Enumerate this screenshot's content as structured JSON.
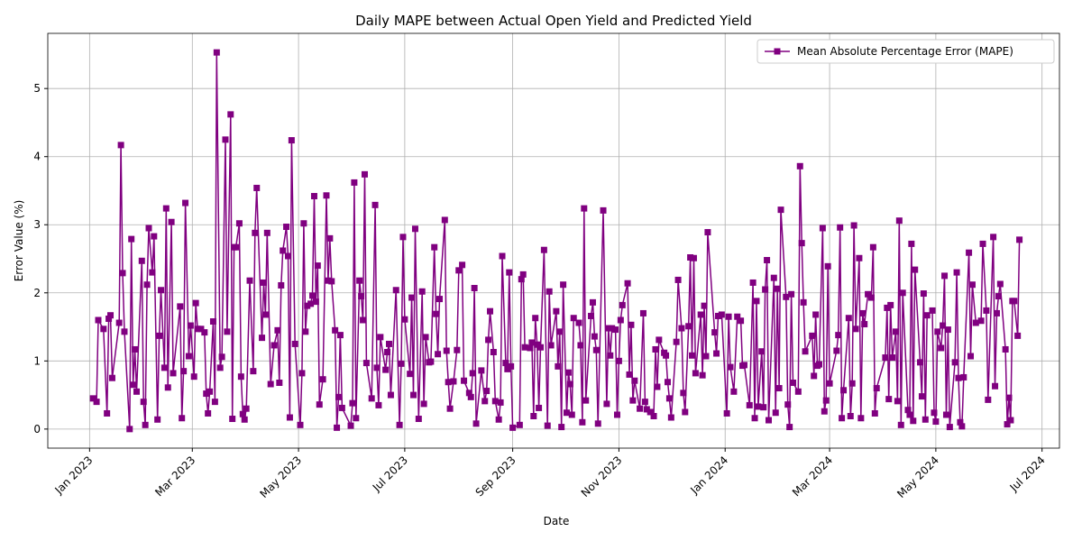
{
  "chart_data": {
    "type": "line",
    "title": "Daily MAPE between Actual Open Yield and Predicted Yield",
    "xlabel": "Date",
    "ylabel": "Error Value (%)",
    "x": [
      2,
      4,
      5,
      8,
      10,
      11,
      12,
      13,
      17,
      18,
      19,
      20,
      23,
      24,
      25,
      26,
      27,
      30,
      31,
      32,
      33,
      34,
      36,
      37,
      39,
      40,
      41,
      43,
      44,
      45,
      47,
      48,
      52,
      53,
      54,
      55,
      57,
      58,
      60,
      61,
      62,
      64,
      66,
      67,
      68,
      69,
      71,
      72,
      73,
      75,
      76,
      78,
      79,
      81,
      82,
      83,
      84,
      86,
      87,
      88,
      89,
      90,
      92,
      94,
      95,
      96,
      99,
      100,
      101,
      102,
      104,
      106,
      108,
      109,
      110,
      111,
      113,
      114,
      115,
      116,
      118,
      121,
      122,
      123,
      124,
      125,
      127,
      128,
      129,
      130,
      131,
      132,
      134,
      136,
      137,
      138,
      139,
      141,
      142,
      143,
      144,
      145,
      150,
      151,
      152,
      153,
      155,
      156,
      157,
      158,
      159,
      162,
      164,
      165,
      166,
      167,
      170,
      171,
      172,
      173,
      176,
      178,
      179,
      180,
      181,
      184,
      185,
      186,
      187,
      189,
      191,
      192,
      193,
      195,
      196,
      198,
      199,
      200,
      201,
      204,
      205,
      206,
      207,
      209,
      211,
      212,
      214,
      215,
      218,
      219,
      220,
      221,
      222,
      225,
      227,
      228,
      229,
      230,
      232,
      233,
      235,
      236,
      237,
      239,
      240,
      241,
      242,
      243,
      247,
      248,
      249,
      250,
      253,
      254,
      255,
      256,
      257,
      258,
      259,
      261,
      263,
      264,
      265,
      268,
      269,
      270,
      271,
      272,
      274,
      275,
      276,
      277,
      278,
      281,
      282,
      283,
      284,
      285,
      288,
      289,
      290,
      291,
      292,
      295,
      297,
      298,
      299,
      300,
      302,
      303,
      304,
      305,
      306,
      309,
      310,
      311,
      312,
      313,
      316,
      318,
      319,
      320,
      322,
      324,
      325,
      326,
      327,
      330,
      331,
      332,
      333,
      334,
      337,
      338,
      340,
      341,
      342,
      344,
      345,
      346,
      347,
      348,
      351,
      352,
      353,
      354,
      355,
      359,
      360,
      361,
      363,
      366,
      367,
      368,
      370,
      372,
      374,
      375,
      376,
      379,
      381,
      382,
      383,
      384,
      386,
      387,
      388,
      389,
      390,
      393,
      394,
      395,
      396,
      397,
      400,
      401,
      402,
      403,
      404,
      407,
      408,
      409,
      410,
      411,
      415,
      416,
      417,
      418,
      419,
      421,
      422,
      423,
      424,
      425,
      429,
      430,
      431,
      432,
      433,
      436,
      437,
      438,
      439,
      440,
      442,
      443,
      444,
      445,
      447,
      449,
      450,
      451,
      452,
      457,
      458,
      459,
      460,
      461,
      463,
      464,
      465,
      466,
      467,
      470,
      471,
      472,
      473,
      474,
      477,
      478,
      479,
      480,
      481,
      484,
      485,
      486,
      487,
      489,
      490,
      491,
      492,
      493,
      494,
      497,
      498,
      499,
      500,
      501,
      502,
      505,
      506,
      507,
      509,
      512,
      513,
      515,
      516,
      519,
      520,
      521,
      522,
      523,
      526,
      527,
      528,
      529,
      530,
      531,
      533,
      534
    ],
    "series": [
      {
        "name": "Mean Absolute Percentage Error (MAPE)",
        "color": "#800080",
        "values": [
          0.45,
          0.4,
          1.6,
          1.47,
          0.23,
          1.62,
          1.67,
          0.75,
          1.56,
          4.17,
          2.29,
          1.43,
          0.0,
          2.79,
          0.65,
          1.17,
          0.55,
          2.47,
          0.4,
          0.06,
          2.12,
          2.95,
          2.3,
          2.83,
          0.14,
          1.37,
          2.04,
          0.9,
          3.24,
          0.61,
          3.04,
          0.82,
          1.8,
          0.16,
          0.85,
          3.32,
          1.07,
          1.52,
          0.77,
          1.85,
          1.47,
          1.47,
          1.42,
          0.52,
          0.23,
          0.55,
          1.58,
          0.4,
          5.53,
          0.9,
          1.06,
          4.25,
          1.43,
          4.62,
          0.15,
          2.67,
          2.67,
          3.02,
          0.77,
          0.22,
          0.14,
          0.3,
          2.18,
          0.85,
          2.88,
          3.54,
          1.34,
          2.15,
          1.68,
          2.88,
          0.66,
          1.23,
          1.45,
          0.68,
          2.11,
          2.62,
          2.97,
          2.54,
          0.17,
          4.24,
          1.25,
          0.06,
          0.82,
          3.02,
          1.43,
          1.81,
          1.84,
          1.96,
          3.42,
          1.87,
          2.4,
          0.36,
          0.73,
          3.43,
          2.18,
          2.8,
          2.17,
          1.45,
          0.02,
          0.47,
          1.38,
          0.31,
          0.05,
          0.38,
          3.62,
          0.16,
          2.18,
          1.95,
          1.6,
          3.74,
          0.97,
          0.45,
          3.29,
          0.9,
          0.35,
          1.35,
          0.87,
          1.13,
          1.25,
          0.5,
          2.04,
          0.06,
          0.96,
          2.82,
          1.61,
          0.81,
          1.93,
          0.5,
          2.94,
          0.15,
          2.02,
          0.37,
          1.35,
          0.98,
          0.99,
          2.67,
          1.69,
          1.1,
          1.91,
          3.07,
          1.15,
          0.69,
          0.3,
          0.7,
          1.16,
          2.33,
          2.41,
          0.71,
          0.53,
          0.47,
          0.82,
          2.07,
          0.08,
          0.86,
          0.41,
          0.56,
          1.31,
          1.73,
          1.13,
          0.41,
          0.14,
          0.39,
          2.54,
          0.97,
          0.88,
          2.3,
          0.92,
          0.02,
          0.06,
          2.2,
          2.27,
          1.2,
          1.19,
          1.27,
          0.19,
          1.63,
          1.24,
          0.31,
          1.2,
          2.63,
          0.05,
          2.02,
          1.23,
          1.73,
          0.92,
          1.43,
          0.03,
          2.12,
          0.24,
          0.83,
          0.66,
          0.21,
          1.63,
          1.56,
          1.23,
          0.1,
          3.24,
          0.42,
          1.66,
          1.86,
          1.36,
          1.16,
          0.08,
          3.21,
          0.37,
          1.48,
          1.08,
          1.48,
          1.46,
          0.21,
          1.0,
          1.6,
          1.82,
          2.14,
          0.8,
          1.53,
          0.42,
          0.71,
          0.3,
          1.7,
          0.4,
          0.29,
          0.25,
          0.19,
          1.17,
          0.62,
          1.31,
          1.12,
          1.08,
          0.69,
          0.45,
          0.17,
          1.28,
          2.19,
          1.48,
          0.53,
          0.25,
          1.51,
          2.52,
          1.08,
          2.51,
          0.82,
          1.68,
          0.79,
          1.81,
          1.07,
          2.89,
          1.42,
          1.11,
          1.66,
          1.68,
          0.23,
          1.65,
          0.91,
          0.55,
          1.65,
          1.59,
          0.93,
          0.94,
          0.35,
          2.15,
          0.16,
          1.88,
          0.33,
          1.14,
          0.32,
          2.05,
          2.48,
          0.13,
          2.22,
          0.24,
          2.06,
          0.6,
          3.22,
          1.94,
          0.36,
          0.03,
          1.98,
          0.68,
          0.55,
          3.86,
          2.73,
          1.86,
          1.14,
          1.37,
          0.78,
          1.68,
          0.93,
          0.95,
          2.95,
          0.26,
          0.42,
          2.39,
          0.67,
          1.15,
          1.38,
          2.96,
          0.16,
          0.57,
          1.63,
          0.19,
          0.67,
          2.99,
          1.47,
          2.51,
          0.16,
          1.7,
          1.54,
          1.98,
          1.93,
          2.67,
          0.23,
          0.6,
          1.05,
          1.78,
          0.44,
          1.82,
          1.05,
          1.43,
          0.41,
          3.06,
          0.06,
          2.0,
          0.28,
          0.21,
          2.72,
          0.12,
          2.34,
          0.98,
          0.48,
          1.99,
          0.14,
          1.67,
          1.74,
          0.24,
          0.11,
          1.43,
          1.19,
          1.52,
          2.25,
          0.21,
          1.46,
          0.03,
          0.98,
          2.3,
          0.75,
          0.1,
          0.04,
          0.76,
          2.59,
          1.07,
          2.12,
          1.56,
          1.59,
          2.72,
          1.74,
          0.43,
          2.82,
          0.63,
          1.7,
          1.95,
          2.13,
          1.17,
          0.07,
          0.46,
          0.13,
          1.88,
          1.88,
          1.37,
          2.78
        ]
      }
    ],
    "xlim": [
      -24,
      557
    ],
    "xticks": [
      {
        "value": 0,
        "label": "Jan 2023"
      },
      {
        "value": 59,
        "label": "Mar 2023"
      },
      {
        "value": 120,
        "label": "May 2023"
      },
      {
        "value": 181,
        "label": "Jul 2023"
      },
      {
        "value": 243,
        "label": "Sep 2023"
      },
      {
        "value": 304,
        "label": "Nov 2023"
      },
      {
        "value": 365,
        "label": "Jan 2024"
      },
      {
        "value": 425,
        "label": "Mar 2024"
      },
      {
        "value": 486,
        "label": "May 2024"
      },
      {
        "value": 547,
        "label": "Jul 2024"
      }
    ],
    "ylim": [
      -0.28,
      5.81
    ],
    "yticks": [
      0,
      1,
      2,
      3,
      4,
      5
    ],
    "grid": true,
    "legend": "upper right"
  }
}
